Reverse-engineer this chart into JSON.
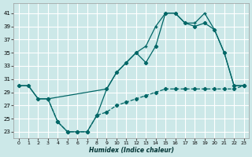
{
  "xlabel": "Humidex (Indice chaleur)",
  "bg_color": "#cce8e8",
  "grid_color": "#ffffff",
  "line_color": "#006666",
  "xlim": [
    -0.5,
    23.5
  ],
  "ylim": [
    22,
    42.5
  ],
  "yticks": [
    23,
    25,
    27,
    29,
    31,
    33,
    35,
    37,
    39,
    41
  ],
  "xticks": [
    0,
    1,
    2,
    3,
    4,
    5,
    6,
    7,
    8,
    9,
    10,
    11,
    12,
    13,
    14,
    15,
    16,
    17,
    18,
    19,
    20,
    21,
    22,
    23
  ],
  "curve1_x": [
    0,
    1,
    2,
    3,
    4,
    5,
    6,
    7,
    8,
    9,
    10,
    11,
    12,
    13,
    14,
    15,
    16,
    17,
    18,
    19,
    20,
    21,
    22,
    23
  ],
  "curve1_y": [
    30,
    30,
    28,
    28,
    24.5,
    23,
    23,
    23,
    25.5,
    29.5,
    32,
    33.5,
    35,
    33.5,
    36,
    41,
    41,
    39.5,
    39,
    39.5,
    38.5,
    35,
    30,
    30
  ],
  "curve2_x": [
    0,
    1,
    2,
    3,
    9,
    10,
    11,
    12,
    13,
    14,
    15,
    16,
    17,
    18,
    19,
    20,
    21,
    22,
    23
  ],
  "curve2_y": [
    30,
    30,
    28,
    28,
    29.5,
    32,
    33.5,
    35,
    36,
    39,
    41,
    41,
    39.5,
    39.5,
    41,
    38.5,
    35,
    30,
    30
  ],
  "curve3_x": [
    3,
    4,
    5,
    6,
    7,
    8,
    9,
    10,
    11,
    12,
    13,
    14,
    15,
    16,
    17,
    18,
    19,
    20,
    21,
    22,
    23
  ],
  "curve3_y": [
    28,
    24.5,
    23,
    23,
    23,
    25.5,
    26,
    27,
    27.5,
    28,
    28.5,
    29,
    29.5,
    29.5,
    29.5,
    29.5,
    29.5,
    29.5,
    29.5,
    29.5,
    30
  ]
}
